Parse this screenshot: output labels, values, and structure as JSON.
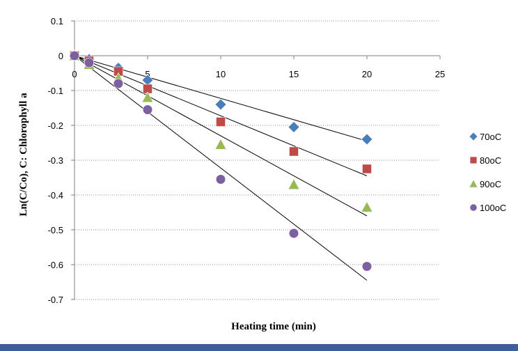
{
  "chart_data": {
    "type": "scatter",
    "title": "",
    "xlabel": "Heating time (min)",
    "ylabel": "Ln(C/Co), C: Chlorophyll a",
    "xlim": [
      0,
      25
    ],
    "ylim": [
      -0.7,
      0.1
    ],
    "x_ticks": [
      0,
      5,
      10,
      15,
      20,
      25
    ],
    "y_ticks": [
      0.1,
      0,
      -0.1,
      -0.2,
      -0.3,
      -0.4,
      -0.5,
      -0.6,
      -0.7
    ],
    "x_tick_labels": [
      "0",
      "5",
      "10",
      "15",
      "20",
      "25"
    ],
    "y_tick_labels": [
      "0.1",
      "0",
      "-0.1",
      "-0.2",
      "-0.3",
      "-0.4",
      "-0.5",
      "-0.6",
      "-0.7"
    ],
    "grid": "horizontal dotted",
    "legend_position": "right",
    "series": [
      {
        "name": "70oC",
        "marker": "diamond",
        "color": "#4a7ebb",
        "x": [
          0,
          1,
          3,
          5,
          10,
          15,
          20
        ],
        "y": [
          0,
          -0.01,
          -0.035,
          -0.07,
          -0.14,
          -0.205,
          -0.24
        ],
        "trendline": [
          [
            0,
            0
          ],
          [
            20,
            -0.245
          ]
        ]
      },
      {
        "name": "80oC",
        "marker": "square",
        "color": "#be4b48",
        "x": [
          0,
          1,
          3,
          5,
          10,
          15,
          20
        ],
        "y": [
          0,
          -0.015,
          -0.045,
          -0.095,
          -0.19,
          -0.275,
          -0.325
        ],
        "trendline": [
          [
            0,
            0
          ],
          [
            20,
            -0.345
          ]
        ]
      },
      {
        "name": "90oC",
        "marker": "triangle",
        "color": "#98b954",
        "x": [
          0,
          1,
          3,
          5,
          10,
          15,
          20
        ],
        "y": [
          0,
          -0.025,
          -0.065,
          -0.12,
          -0.255,
          -0.37,
          -0.435
        ],
        "trendline": [
          [
            0,
            0
          ],
          [
            20,
            -0.46
          ]
        ]
      },
      {
        "name": "100oC",
        "marker": "circle",
        "color": "#7d60a0",
        "x": [
          0,
          1,
          3,
          5,
          10,
          15,
          20
        ],
        "y": [
          0,
          -0.02,
          -0.08,
          -0.155,
          -0.355,
          -0.51,
          -0.605
        ],
        "trendline": [
          [
            0,
            0
          ],
          [
            20,
            -0.645
          ]
        ]
      }
    ]
  }
}
